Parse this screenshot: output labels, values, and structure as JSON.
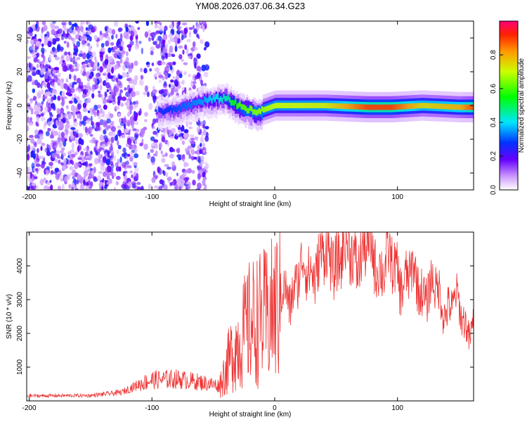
{
  "title": "YM08.2026.037.06.34.G23",
  "chart_data": [
    {
      "type": "heatmap",
      "xlabel": "Height of straight line (km)",
      "ylabel": "Frequency (Hz)",
      "xlim": [
        -202,
        162
      ],
      "ylim": [
        -50,
        50
      ],
      "xticks": [
        -200,
        -100,
        0,
        100
      ],
      "yticks": [
        -40,
        -20,
        0,
        20,
        40
      ],
      "colorbar": {
        "label": "Normalized spectral amplitude",
        "range": [
          0,
          1
        ],
        "ticks": [
          "0.0",
          "0.2",
          "0.4",
          "0.6",
          "0.8"
        ]
      },
      "ridge": [
        {
          "x": -95,
          "f": -3,
          "amp": 0.25
        },
        {
          "x": -80,
          "f": -2,
          "amp": 0.3
        },
        {
          "x": -60,
          "f": 3,
          "amp": 0.35
        },
        {
          "x": -40,
          "f": 5,
          "amp": 0.45
        },
        {
          "x": -30,
          "f": 0,
          "amp": 0.6
        },
        {
          "x": -15,
          "f": -4,
          "amp": 0.65
        },
        {
          "x": 0,
          "f": 0,
          "amp": 0.7
        },
        {
          "x": 40,
          "f": 0,
          "amp": 0.72
        },
        {
          "x": 75,
          "f": -1,
          "amp": 0.9
        },
        {
          "x": 95,
          "f": -1,
          "amp": 0.9
        },
        {
          "x": 120,
          "f": 0,
          "amp": 0.75
        },
        {
          "x": 150,
          "f": -1,
          "amp": 0.8
        },
        {
          "x": 162,
          "f": -1,
          "amp": 0.9
        }
      ]
    },
    {
      "type": "line",
      "xlabel": "Height of straight line (km)",
      "ylabel": "SNR (10 * v/v)",
      "xlim": [
        -202,
        162
      ],
      "ylim": [
        0,
        5000
      ],
      "xticks": [
        -200,
        -100,
        0,
        100
      ],
      "yticks": [
        1000,
        2000,
        3000,
        4000
      ],
      "color": "#ee3333",
      "envelope": [
        {
          "x": -202,
          "snr": 150
        },
        {
          "x": -150,
          "snr": 160
        },
        {
          "x": -125,
          "snr": 250
        },
        {
          "x": -110,
          "snr": 500
        },
        {
          "x": -100,
          "snr": 620
        },
        {
          "x": -80,
          "snr": 650
        },
        {
          "x": -60,
          "snr": 550
        },
        {
          "x": -45,
          "snr": 450
        },
        {
          "x": -35,
          "snr": 1400
        },
        {
          "x": -20,
          "snr": 2300
        },
        {
          "x": -5,
          "snr": 2500
        },
        {
          "x": 10,
          "snr": 3200
        },
        {
          "x": 30,
          "snr": 4000
        },
        {
          "x": 50,
          "snr": 4300
        },
        {
          "x": 75,
          "snr": 4400
        },
        {
          "x": 95,
          "snr": 3900
        },
        {
          "x": 125,
          "snr": 3300
        },
        {
          "x": 145,
          "snr": 2800
        },
        {
          "x": 162,
          "snr": 2200
        }
      ]
    }
  ]
}
